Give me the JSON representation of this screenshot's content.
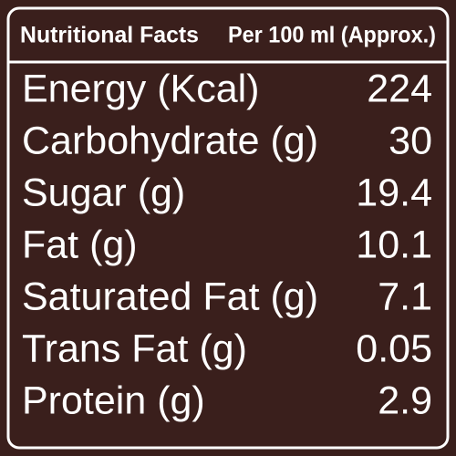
{
  "header": {
    "title": "Nutritional Facts",
    "basis": "Per 100 ml (Approx.)"
  },
  "table": {
    "rows": [
      [
        "Energy (Kcal)",
        224
      ],
      [
        "Carbohydrate (g)",
        30
      ],
      [
        "Sugar (g)",
        19.4
      ],
      [
        "Fat (g)",
        10.1
      ],
      [
        "Saturated Fat (g)",
        7.1
      ],
      [
        "Trans Fat (g)",
        0.05
      ],
      [
        "Protein (g)",
        2.9
      ]
    ]
  }
}
